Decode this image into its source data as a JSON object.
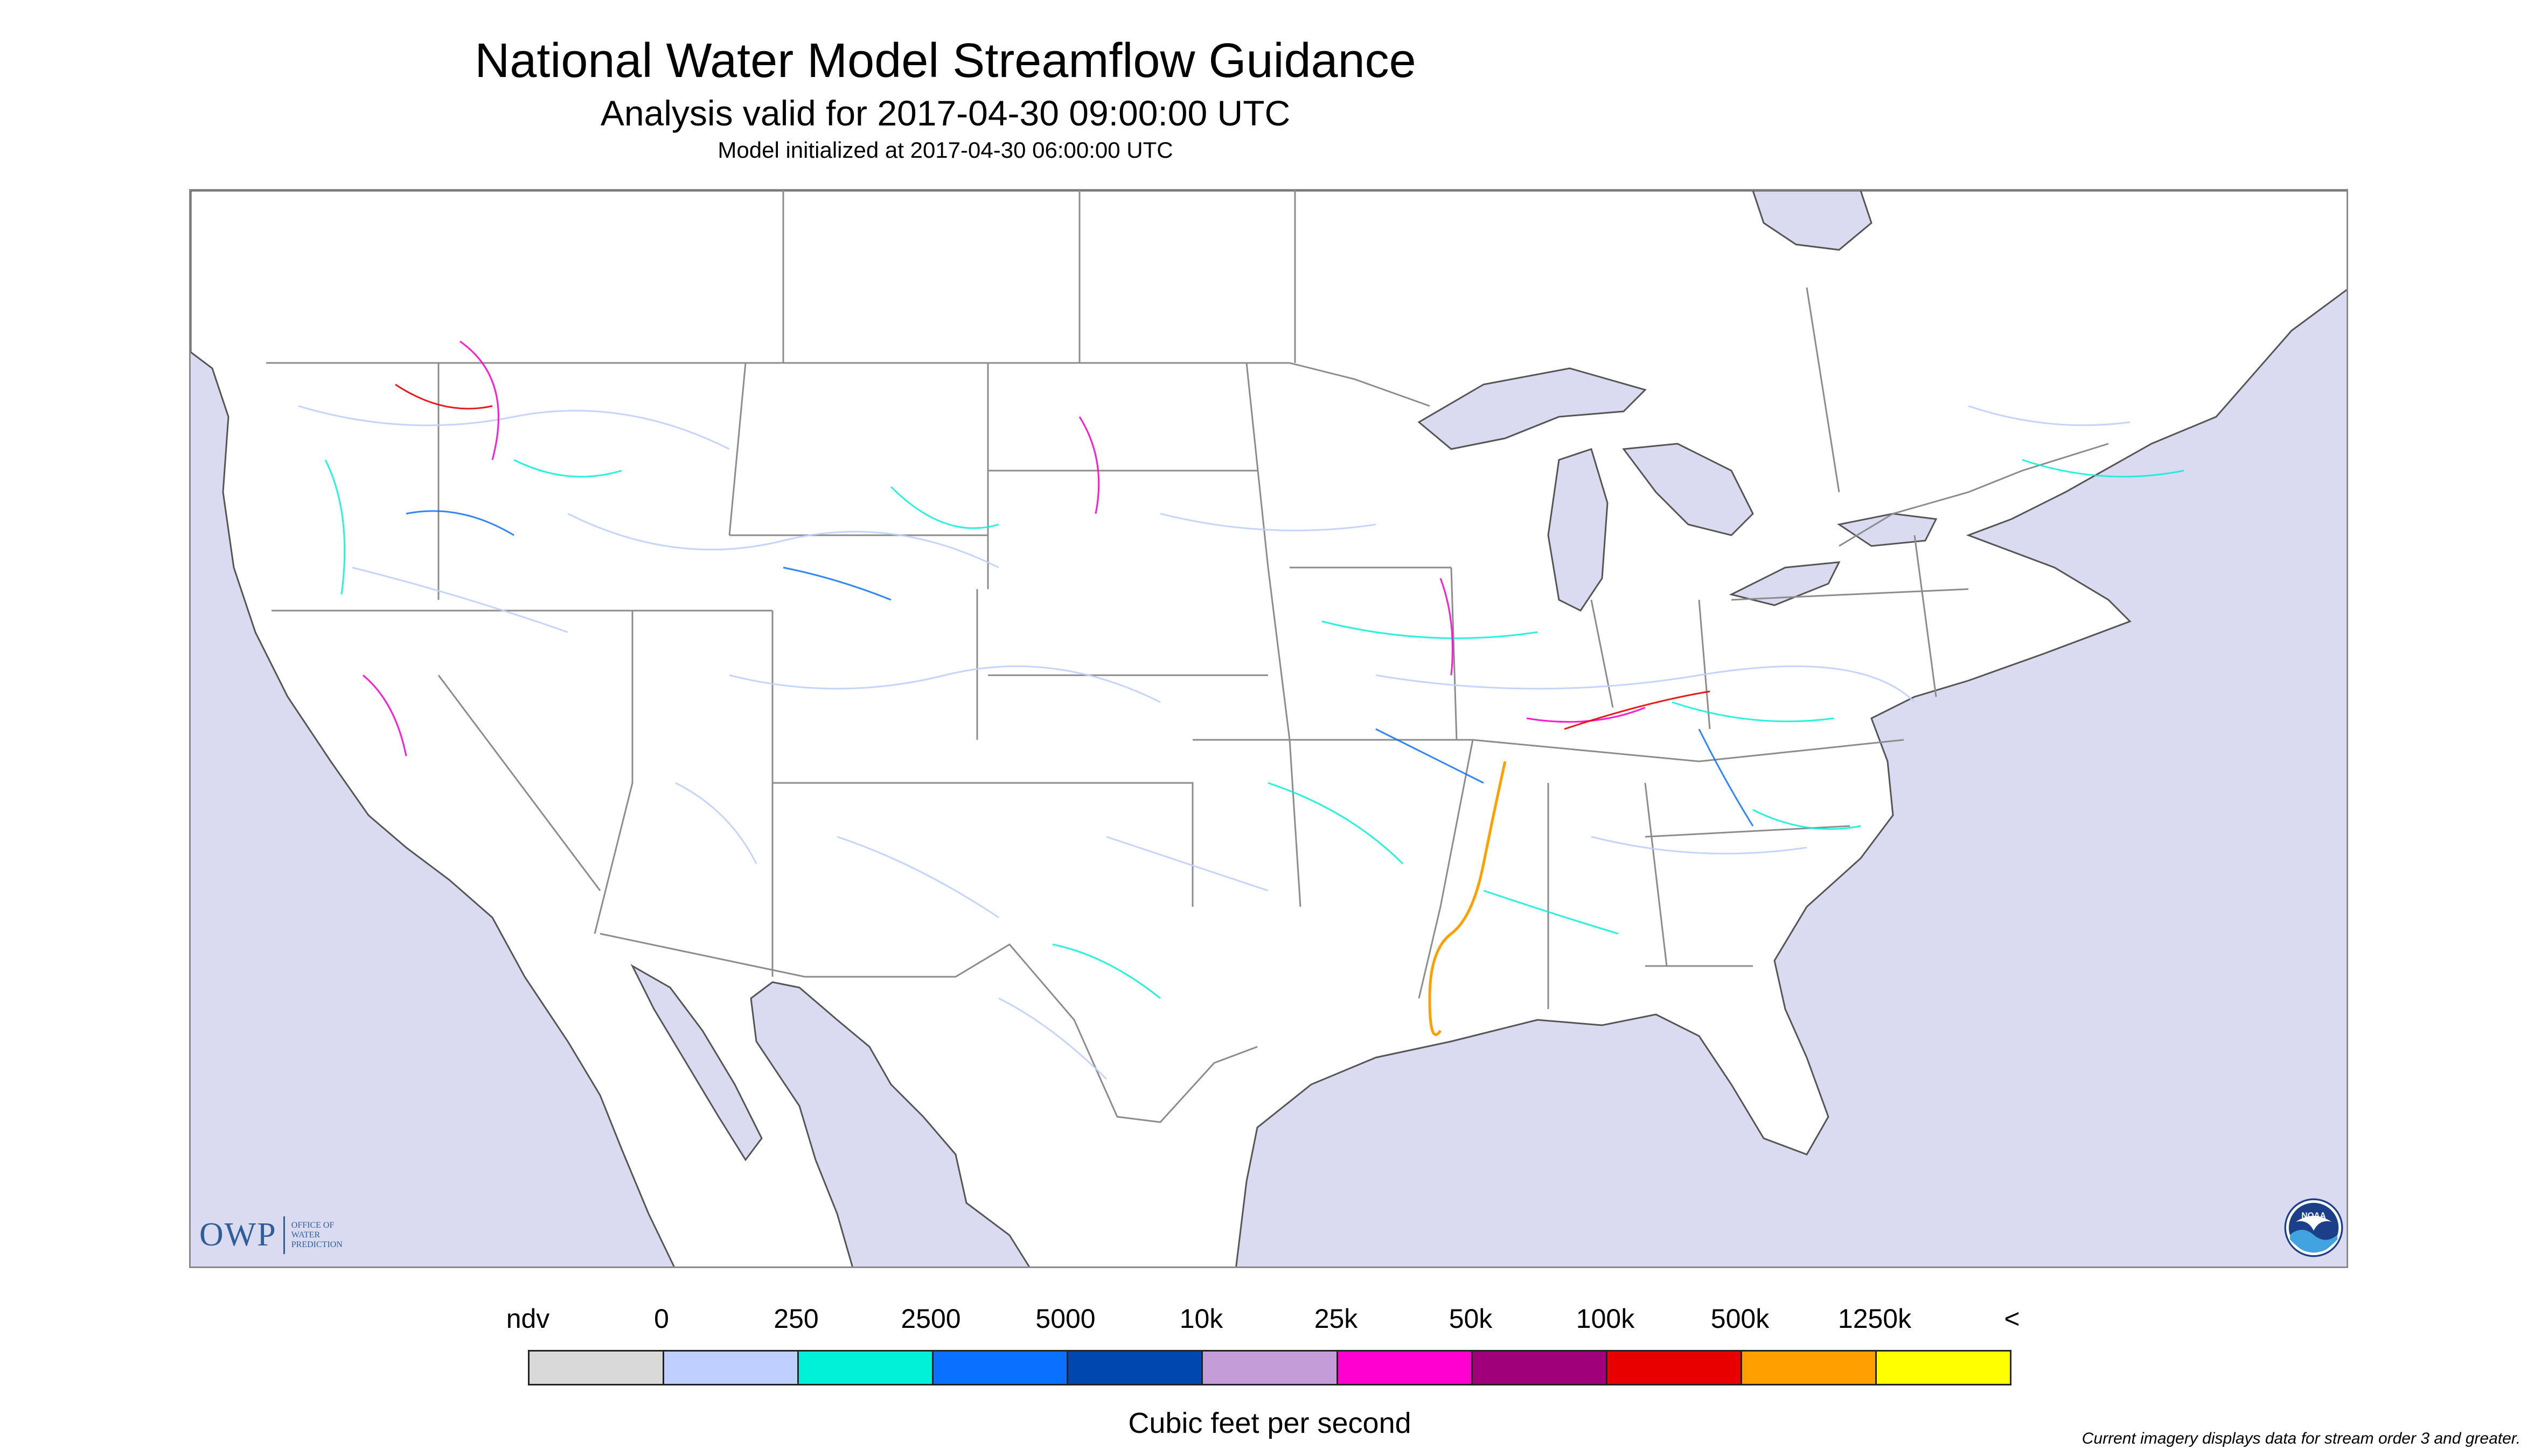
{
  "header": {
    "title": "National Water Model Streamflow Guidance",
    "subtitle": "Analysis valid for 2017-04-30 09:00:00 UTC",
    "initialized": "Model initialized at 2017-04-30 06:00:00 UTC"
  },
  "map": {
    "ocean_color": "#dadaf0",
    "land_color": "#ffffff",
    "border_color": "#8c8c8c"
  },
  "logos": {
    "owp_text": "OWP",
    "owp_subtext": [
      "OFFICE OF",
      "WATER",
      "PREDICTION"
    ],
    "noaa_text": "NOAA"
  },
  "legend": {
    "labels": [
      "ndv",
      "0",
      "250",
      "2500",
      "5000",
      "10k",
      "25k",
      "50k",
      "100k",
      "500k",
      "1250k",
      "<"
    ],
    "colors": [
      "#d9d9d9",
      "#bfcfff",
      "#00f0d8",
      "#0a70ff",
      "#0048b0",
      "#c39cd8",
      "#ff00d0",
      "#a0007a",
      "#e80000",
      "#ffa000",
      "#ffff00"
    ],
    "units": "Cubic feet per second"
  },
  "footnote": "Current imagery displays data for stream order 3 and greater."
}
